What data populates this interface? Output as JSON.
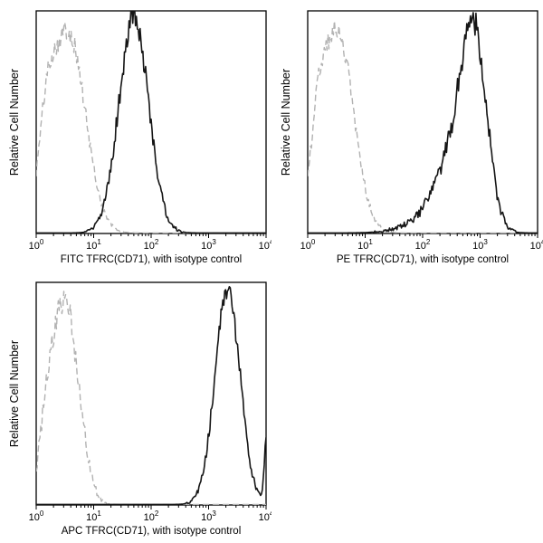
{
  "figure": {
    "background": "#ffffff",
    "text_color": "#000000",
    "isotype_color": "#b2b2b2",
    "antibody_color": "#151515"
  },
  "chart_data": [
    {
      "type": "line",
      "subtype": "flow-cytometry-histogram-overlay",
      "title": "",
      "xlabel": "FITC TFRC(CD71), with isotype control",
      "ylabel": "Relative Cell Number",
      "x_scale": "log10",
      "xlim": [
        1,
        10000
      ],
      "xlim_exponents": [
        0,
        4
      ],
      "x_tick_exponents": [
        0,
        1,
        2,
        3,
        4
      ],
      "x_tick_labels": [
        "10^0",
        "10^1",
        "10^2",
        "10^3",
        "10^4"
      ],
      "y_axis_ticks": "none",
      "grid": false,
      "legend": "none",
      "series": [
        {
          "name": "isotype control",
          "style": "dashed",
          "color": "#b2b2b2",
          "line_width": 1.4,
          "peak_height": 0.92,
          "noise": 0.05,
          "seed": 101,
          "peaks": [
            {
              "center_log10": 0.55,
              "sigma_log10": 0.3,
              "height": 1.0
            },
            {
              "center_log10": 0.18,
              "sigma_log10": 0.13,
              "height": 0.3
            }
          ]
        },
        {
          "name": "TFRC(CD71) antibody",
          "style": "solid",
          "color": "#151515",
          "line_width": 1.6,
          "peak_height": 0.97,
          "noise": 0.06,
          "seed": 102,
          "peaks": [
            {
              "center_log10": 1.7,
              "sigma_log10": 0.26,
              "height": 1.0
            }
          ]
        }
      ]
    },
    {
      "type": "line",
      "subtype": "flow-cytometry-histogram-overlay",
      "title": "",
      "xlabel": "PE TFRC(CD71), with isotype control",
      "ylabel": "Relative Cell Number",
      "x_scale": "log10",
      "xlim": [
        1,
        10000
      ],
      "xlim_exponents": [
        0,
        4
      ],
      "x_tick_exponents": [
        0,
        1,
        2,
        3,
        4
      ],
      "x_tick_labels": [
        "10^0",
        "10^1",
        "10^2",
        "10^3",
        "10^4"
      ],
      "y_axis_ticks": "none",
      "grid": false,
      "legend": "none",
      "series": [
        {
          "name": "isotype control",
          "style": "dashed",
          "color": "#b2b2b2",
          "line_width": 1.4,
          "peak_height": 0.92,
          "noise": 0.05,
          "seed": 201,
          "peaks": [
            {
              "center_log10": 0.52,
              "sigma_log10": 0.28,
              "height": 1.0
            },
            {
              "center_log10": 0.18,
              "sigma_log10": 0.13,
              "height": 0.28
            }
          ]
        },
        {
          "name": "TFRC(CD71) antibody",
          "style": "solid",
          "color": "#151515",
          "line_width": 1.6,
          "peak_height": 0.98,
          "noise": 0.07,
          "seed": 202,
          "peaks": [
            {
              "center_log10": 2.9,
              "sigma_log10": 0.22,
              "height": 1.0
            },
            {
              "center_log10": 2.55,
              "sigma_log10": 0.32,
              "height": 0.4
            },
            {
              "center_log10": 2.0,
              "sigma_log10": 0.4,
              "height": 0.05
            }
          ]
        }
      ]
    },
    {
      "type": "line",
      "subtype": "flow-cytometry-histogram-overlay",
      "title": "",
      "xlabel": "APC TFRC(CD71), with isotype control",
      "ylabel": "Relative Cell Number",
      "x_scale": "log10",
      "xlim": [
        1,
        10000
      ],
      "xlim_exponents": [
        0,
        4
      ],
      "x_tick_exponents": [
        0,
        1,
        2,
        3,
        4
      ],
      "x_tick_labels": [
        "10^0",
        "10^1",
        "10^2",
        "10^3",
        "10^4"
      ],
      "y_axis_ticks": "none",
      "grid": false,
      "legend": "none",
      "series": [
        {
          "name": "isotype control",
          "style": "dashed",
          "color": "#b2b2b2",
          "line_width": 1.4,
          "peak_height": 0.93,
          "noise": 0.07,
          "seed": 301,
          "peaks": [
            {
              "center_log10": 0.4,
              "sigma_log10": 0.17,
              "height": 0.85
            },
            {
              "center_log10": 0.62,
              "sigma_log10": 0.2,
              "height": 0.95
            },
            {
              "center_log10": 0.17,
              "sigma_log10": 0.12,
              "height": 0.5
            }
          ]
        },
        {
          "name": "TFRC(CD71) antibody",
          "style": "solid",
          "color": "#151515",
          "line_width": 1.6,
          "peak_height": 0.96,
          "noise": 0.05,
          "seed": 302,
          "peaks": [
            {
              "center_log10": 3.33,
              "sigma_log10": 0.22,
              "height": 1.0
            },
            {
              "center_log10": 4.04,
              "sigma_log10": 0.05,
              "height": 0.45
            }
          ]
        }
      ]
    }
  ]
}
